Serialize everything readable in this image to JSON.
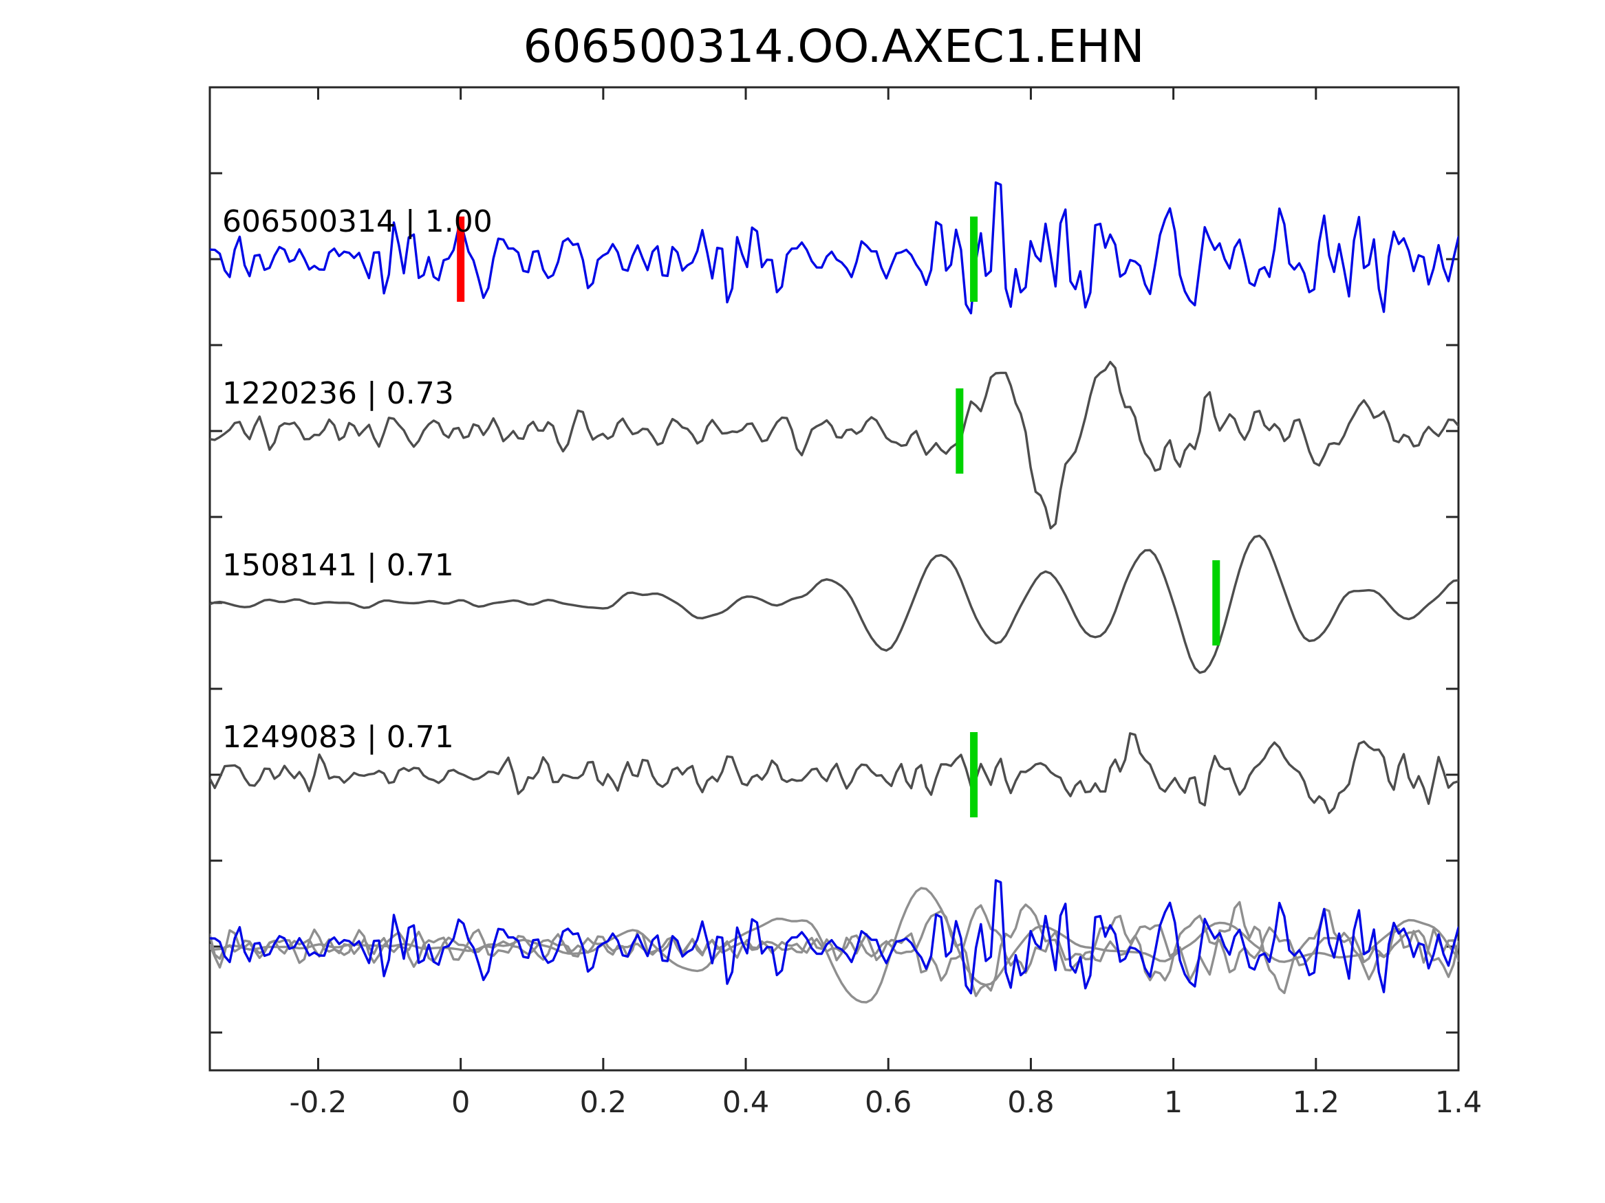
{
  "chart_data": {
    "type": "line",
    "title": "606500314.OO.AXEC1.EHN",
    "xlabel": "",
    "ylabel": "",
    "grid": false,
    "legend": null,
    "xlim": [
      -0.352,
      1.4
    ],
    "x_ticks": [
      {
        "value": -0.2,
        "label": "-0.2"
      },
      {
        "value": 0.0,
        "label": "0"
      },
      {
        "value": 0.2,
        "label": "0.2"
      },
      {
        "value": 0.4,
        "label": "0.4"
      },
      {
        "value": 0.6,
        "label": "0.6"
      },
      {
        "value": 0.8,
        "label": "0.8"
      },
      {
        "value": 1.0,
        "label": "1"
      },
      {
        "value": 1.2,
        "label": "1.2"
      },
      {
        "value": 1.4,
        "label": "1.4"
      }
    ],
    "colors": {
      "template_blue": "#0008e6",
      "detection_gray": "#4d4d4d",
      "overlay_gray": "#8f8f8f",
      "pick_green": "#00d300",
      "pick_red": "#ff0000",
      "axis": "#262626",
      "text": "#000000",
      "background": "#ffffff"
    },
    "series": [
      {
        "id": "606500314",
        "cc": "1.00",
        "label": "606500314 | 1.00",
        "role": "template",
        "color": "#0008e6",
        "picks": [
          {
            "time": 0.0,
            "color": "#ff0000",
            "name": "template-origin-pick"
          },
          {
            "time": 0.72,
            "color": "#00d300",
            "name": "phase-pick"
          }
        ],
        "waveform": {
          "seed": 19,
          "points": 252,
          "amp": 110,
          "components": [
            {
              "freq": [
                12,
                48
              ],
              "k": 26,
              "tshift": 0,
              "env": [
                [
                  -0.36,
                  0.5
                ],
                [
                  0.1,
                  0.45
                ],
                [
                  0.3,
                  0.5
                ],
                [
                  0.5,
                  0.58
                ],
                [
                  0.6,
                  0.5
                ],
                [
                  0.66,
                  0.95
                ],
                [
                  0.78,
                  1.0
                ],
                [
                  0.9,
                  0.8
                ],
                [
                  1.0,
                  0.9
                ],
                [
                  1.1,
                  1.0
                ],
                [
                  1.2,
                  0.9
                ],
                [
                  1.3,
                  0.7
                ],
                [
                  1.4,
                  0.65
                ]
              ]
            }
          ]
        }
      },
      {
        "id": "1220236",
        "cc": "0.73",
        "label": "1220236 | 0.73",
        "role": "detection",
        "color": "#4d4d4d",
        "picks": [
          {
            "time": 0.7,
            "color": "#00d300",
            "name": "phase-pick"
          }
        ],
        "waveform": {
          "seed": 47,
          "points": 252,
          "amp": 115,
          "components": [
            {
              "freq": [
                14,
                42
              ],
              "k": 24,
              "tshift": 0,
              "env": [
                [
                  -0.36,
                  0.26
                ],
                [
                  0.55,
                  0.24
                ],
                [
                  0.8,
                  0.3
                ],
                [
                  1.4,
                  0.3
                ]
              ]
            },
            {
              "freq": [
                5,
                10
              ],
              "k": 12,
              "tshift": 0,
              "env": [
                [
                  -0.36,
                  0.03
                ],
                [
                  0.6,
                  0.05
                ],
                [
                  0.66,
                  0.6
                ],
                [
                  0.74,
                  0.85
                ],
                [
                  0.82,
                  1.0
                ],
                [
                  0.9,
                  0.85
                ],
                [
                  1.0,
                  0.55
                ],
                [
                  1.15,
                  0.55
                ],
                [
                  1.3,
                  0.5
                ],
                [
                  1.4,
                  0.42
                ]
              ]
            }
          ]
        }
      },
      {
        "id": "1508141",
        "cc": "0.71",
        "label": "1508141 | 0.71",
        "role": "detection",
        "color": "#4d4d4d",
        "picks": [
          {
            "time": 1.06,
            "color": "#00d300",
            "name": "phase-pick"
          }
        ],
        "waveform": {
          "seed": 83,
          "points": 252,
          "amp": 105,
          "components": [
            {
              "freq": [
                3.5,
                7.5
              ],
              "k": 12,
              "tshift": 0,
              "env": [
                [
                  -0.36,
                  0.06
                ],
                [
                  0.05,
                  0.06
                ],
                [
                  0.18,
                  0.3
                ],
                [
                  0.3,
                  0.6
                ],
                [
                  0.42,
                  1.0
                ],
                [
                  0.6,
                  1.0
                ],
                [
                  0.72,
                  0.8
                ],
                [
                  0.85,
                  0.75
                ],
                [
                  1.0,
                  0.8
                ],
                [
                  1.1,
                  0.95
                ],
                [
                  1.22,
                  0.75
                ],
                [
                  1.4,
                  0.6
                ]
              ]
            },
            {
              "freq": [
                12,
                26
              ],
              "k": 10,
              "tshift": 0,
              "env": [
                [
                  -0.36,
                  0.05
                ],
                [
                  1.4,
                  0.05
                ]
              ]
            }
          ]
        }
      },
      {
        "id": "1249083",
        "cc": "0.71",
        "label": "1249083 | 0.71",
        "role": "detection",
        "color": "#4d4d4d",
        "picks": [
          {
            "time": 0.72,
            "color": "#00d300",
            "name": "phase-pick"
          }
        ],
        "waveform": {
          "seed": 131,
          "points": 252,
          "amp": 105,
          "components": [
            {
              "freq": [
                14,
                44
              ],
              "k": 24,
              "tshift": 0,
              "env": [
                [
                  -0.36,
                  0.3
                ],
                [
                  0.6,
                  0.28
                ],
                [
                  1.4,
                  0.32
                ]
              ]
            },
            {
              "freq": [
                5,
                10
              ],
              "k": 12,
              "tshift": 0,
              "env": [
                [
                  -0.36,
                  0.03
                ],
                [
                  0.62,
                  0.05
                ],
                [
                  0.68,
                  0.6
                ],
                [
                  0.76,
                  0.75
                ],
                [
                  0.84,
                  1.0
                ],
                [
                  0.95,
                  0.8
                ],
                [
                  1.1,
                  0.65
                ],
                [
                  1.25,
                  0.55
                ],
                [
                  1.4,
                  0.45
                ]
              ]
            }
          ]
        }
      }
    ],
    "overlay_row": {
      "description": "all detections overlaid with template",
      "traces": [
        {
          "role": "detection-overlay",
          "color": "#8f8f8f",
          "waveform": {
            "seed": 211,
            "points": 252,
            "amp": 88,
            "components": [
              {
                "freq": [
                  14,
                  42
                ],
                "k": 24,
                "tshift": 0,
                "env": [
                  [
                    -0.36,
                    0.26
                  ],
                  [
                    0.55,
                    0.24
                  ],
                  [
                    0.8,
                    0.3
                  ],
                  [
                    1.4,
                    0.3
                  ]
                ]
              },
              {
                "freq": [
                  5,
                  10
                ],
                "k": 12,
                "tshift": 0,
                "env": [
                  [
                    -0.36,
                    0.03
                  ],
                  [
                    0.6,
                    0.05
                  ],
                  [
                    0.66,
                    0.6
                  ],
                  [
                    0.74,
                    0.85
                  ],
                  [
                    0.82,
                    1.0
                  ],
                  [
                    0.9,
                    0.85
                  ],
                  [
                    1.0,
                    0.55
                  ],
                  [
                    1.15,
                    0.55
                  ],
                  [
                    1.3,
                    0.5
                  ],
                  [
                    1.4,
                    0.42
                  ]
                ]
              }
            ]
          }
        },
        {
          "role": "detection-overlay",
          "color": "#8f8f8f",
          "waveform": {
            "seed": 277,
            "points": 252,
            "amp": 85,
            "components": [
              {
                "freq": [
                  3.5,
                  7.5
                ],
                "k": 12,
                "tshift": -0.34,
                "env": [
                  [
                    -0.36,
                    0.06
                  ],
                  [
                    0.05,
                    0.1
                  ],
                  [
                    0.18,
                    0.3
                  ],
                  [
                    0.3,
                    0.6
                  ],
                  [
                    0.42,
                    1.0
                  ],
                  [
                    0.6,
                    1.0
                  ],
                  [
                    0.72,
                    0.8
                  ],
                  [
                    0.85,
                    0.75
                  ],
                  [
                    1.0,
                    0.8
                  ],
                  [
                    1.1,
                    0.95
                  ],
                  [
                    1.22,
                    0.75
                  ],
                  [
                    1.4,
                    0.6
                  ]
                ]
              },
              {
                "freq": [
                  12,
                  26
                ],
                "k": 10,
                "tshift": 0,
                "env": [
                  [
                    -0.36,
                    0.05
                  ],
                  [
                    1.4,
                    0.05
                  ]
                ]
              }
            ]
          }
        },
        {
          "role": "detection-overlay",
          "color": "#8f8f8f",
          "waveform": {
            "seed": 331,
            "points": 252,
            "amp": 88,
            "components": [
              {
                "freq": [
                  14,
                  44
                ],
                "k": 24,
                "tshift": 0,
                "env": [
                  [
                    -0.36,
                    0.3
                  ],
                  [
                    0.6,
                    0.28
                  ],
                  [
                    1.4,
                    0.32
                  ]
                ]
              },
              {
                "freq": [
                  5,
                  10
                ],
                "k": 12,
                "tshift": 0,
                "env": [
                  [
                    -0.36,
                    0.03
                  ],
                  [
                    0.62,
                    0.05
                  ],
                  [
                    0.68,
                    0.6
                  ],
                  [
                    0.76,
                    0.75
                  ],
                  [
                    0.84,
                    1.0
                  ],
                  [
                    0.95,
                    0.8
                  ],
                  [
                    1.1,
                    0.65
                  ],
                  [
                    1.25,
                    0.55
                  ],
                  [
                    1.4,
                    0.45
                  ]
                ]
              }
            ]
          }
        },
        {
          "role": "template-overlay",
          "color": "#0008e6",
          "waveform": {
            "seed": 19,
            "points": 252,
            "amp": 95,
            "components": [
              {
                "freq": [
                  12,
                  48
                ],
                "k": 26,
                "tshift": 0,
                "env": [
                  [
                    -0.36,
                    0.5
                  ],
                  [
                    0.1,
                    0.45
                  ],
                  [
                    0.3,
                    0.5
                  ],
                  [
                    0.5,
                    0.58
                  ],
                  [
                    0.6,
                    0.5
                  ],
                  [
                    0.66,
                    0.95
                  ],
                  [
                    0.78,
                    1.0
                  ],
                  [
                    0.9,
                    0.8
                  ],
                  [
                    1.0,
                    0.9
                  ],
                  [
                    1.1,
                    1.0
                  ],
                  [
                    1.2,
                    0.9
                  ],
                  [
                    1.3,
                    0.7
                  ],
                  [
                    1.4,
                    0.65
                  ]
                ]
              }
            ]
          }
        }
      ]
    }
  }
}
